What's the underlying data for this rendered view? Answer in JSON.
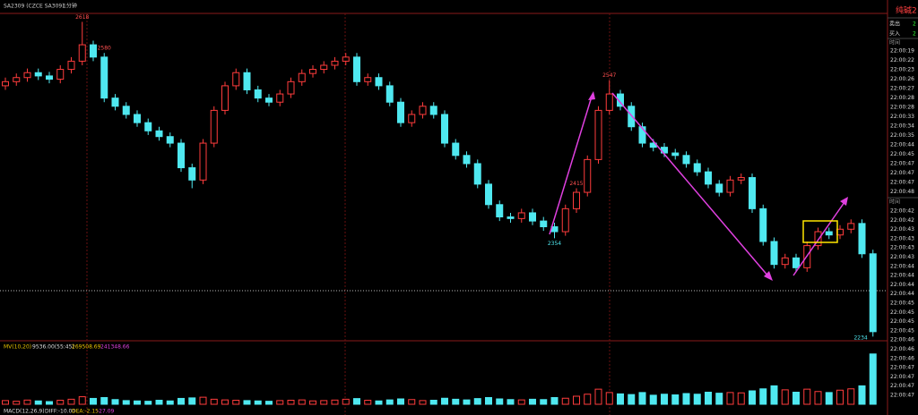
{
  "toolbar": {
    "symbol": "SA2309 (CZCE SA309)",
    "period": "1分钟"
  },
  "side_panel": {
    "title": "纯碱2",
    "sell": "卖出",
    "sell_value": "2",
    "buy": "买入",
    "buy_value": "2",
    "time_header": "时间",
    "times": [
      "22:00:19",
      "22:00:22",
      "22:00:23",
      "22:00:26",
      "22:00:27",
      "22:00:28",
      "22:00:28",
      "22:00:33",
      "22:00:34",
      "22:00:35",
      "22:00:44",
      "22:00:45",
      "22:00:47",
      "22:00:47",
      "22:00:47",
      "22:00:48"
    ],
    "time_header_2": "时间",
    "times_2": [
      "22:00:42",
      "22:00:42",
      "22:00:43",
      "22:00:43",
      "22:00:43",
      "22:00:43",
      "22:00:44",
      "22:00:44",
      "22:00:44",
      "22:00:44",
      "22:00:45",
      "22:00:45",
      "22:00:45",
      "22:00:45",
      "22:00:46",
      "22:00:46",
      "22:00:46",
      "22:00:47",
      "22:00:47",
      "22:00:47",
      "22:00:47"
    ]
  },
  "indicators": {
    "mv": "MV(10,20)",
    "mv_values": [
      "9536.00(55:45)",
      "269508.69",
      "241348.66"
    ],
    "macd": "MACD(12,26,9)",
    "macd_values": [
      "DIFF:-10.00",
      "DEA:-2.15",
      "-27.09"
    ]
  },
  "chart_data": {
    "type": "candlestick",
    "ylim": [
      2230,
      2625
    ],
    "open": [
      2540,
      2545,
      2550,
      2556,
      2552,
      2548,
      2560,
      2570,
      2590,
      2575,
      2525,
      2515,
      2505,
      2495,
      2485,
      2478,
      2470,
      2440,
      2425,
      2470,
      2510,
      2540,
      2556,
      2535,
      2525,
      2520,
      2530,
      2545,
      2555,
      2560,
      2565,
      2570,
      2575,
      2545,
      2550,
      2540,
      2520,
      2495,
      2505,
      2515,
      2505,
      2470,
      2455,
      2445,
      2420,
      2395,
      2380,
      2378,
      2385,
      2375,
      2368,
      2362,
      2390,
      2410,
      2450,
      2510,
      2530,
      2515,
      2490,
      2470,
      2465,
      2458,
      2455,
      2445,
      2435,
      2420,
      2410,
      2425,
      2428,
      2390,
      2350,
      2322,
      2330,
      2318,
      2345,
      2362,
      2358,
      2365,
      2372,
      2335
    ],
    "high": [
      2550,
      2555,
      2561,
      2561,
      2557,
      2565,
      2575,
      2618,
      2595,
      2580,
      2530,
      2520,
      2510,
      2500,
      2490,
      2483,
      2475,
      2445,
      2475,
      2515,
      2545,
      2561,
      2561,
      2540,
      2530,
      2535,
      2550,
      2560,
      2565,
      2570,
      2575,
      2580,
      2580,
      2555,
      2555,
      2545,
      2525,
      2510,
      2520,
      2520,
      2510,
      2475,
      2460,
      2450,
      2425,
      2400,
      2385,
      2390,
      2390,
      2380,
      2373,
      2395,
      2415,
      2455,
      2515,
      2547,
      2535,
      2520,
      2495,
      2475,
      2470,
      2463,
      2460,
      2450,
      2440,
      2425,
      2430,
      2433,
      2433,
      2395,
      2355,
      2335,
      2335,
      2350,
      2367,
      2367,
      2370,
      2377,
      2377,
      2340
    ],
    "low": [
      2535,
      2540,
      2545,
      2547,
      2543,
      2543,
      2555,
      2565,
      2570,
      2520,
      2510,
      2500,
      2490,
      2480,
      2473,
      2465,
      2435,
      2415,
      2420,
      2465,
      2505,
      2535,
      2530,
      2520,
      2515,
      2515,
      2525,
      2540,
      2550,
      2555,
      2560,
      2565,
      2540,
      2540,
      2535,
      2515,
      2490,
      2490,
      2500,
      2500,
      2465,
      2450,
      2440,
      2415,
      2390,
      2375,
      2373,
      2373,
      2370,
      2363,
      2354,
      2357,
      2385,
      2405,
      2445,
      2505,
      2510,
      2485,
      2465,
      2460,
      2453,
      2450,
      2440,
      2430,
      2415,
      2405,
      2405,
      2420,
      2385,
      2345,
      2317,
      2317,
      2313,
      2313,
      2340,
      2353,
      2353,
      2360,
      2330,
      2234
    ],
    "close": [
      2545,
      2550,
      2556,
      2552,
      2548,
      2560,
      2570,
      2590,
      2575,
      2525,
      2515,
      2505,
      2495,
      2485,
      2478,
      2470,
      2440,
      2425,
      2470,
      2510,
      2540,
      2556,
      2535,
      2525,
      2520,
      2530,
      2545,
      2555,
      2560,
      2565,
      2570,
      2575,
      2545,
      2550,
      2540,
      2520,
      2495,
      2505,
      2515,
      2505,
      2470,
      2455,
      2445,
      2420,
      2395,
      2380,
      2378,
      2385,
      2375,
      2368,
      2362,
      2390,
      2410,
      2450,
      2510,
      2530,
      2515,
      2490,
      2470,
      2465,
      2458,
      2455,
      2445,
      2435,
      2420,
      2410,
      2425,
      2428,
      2390,
      2350,
      2322,
      2330,
      2318,
      2345,
      2362,
      2358,
      2365,
      2372,
      2335,
      2240
    ],
    "volume": [
      22,
      18,
      25,
      20,
      16,
      24,
      30,
      45,
      35,
      40,
      28,
      22,
      20,
      18,
      24,
      20,
      35,
      38,
      42,
      30,
      26,
      24,
      22,
      20,
      18,
      22,
      24,
      26,
      20,
      22,
      25,
      30,
      34,
      24,
      20,
      26,
      32,
      28,
      22,
      24,
      36,
      30,
      26,
      34,
      40,
      32,
      28,
      26,
      30,
      28,
      40,
      36,
      48,
      60,
      90,
      70,
      62,
      58,
      70,
      54,
      60,
      56,
      64,
      60,
      72,
      66,
      70,
      68,
      80,
      92,
      110,
      86,
      72,
      90,
      76,
      70,
      84,
      92,
      110,
      300
    ],
    "vlim": [
      0,
      320
    ],
    "price_labels": [
      2618,
      2580,
      2415,
      2547,
      2354,
      2234
    ]
  }
}
